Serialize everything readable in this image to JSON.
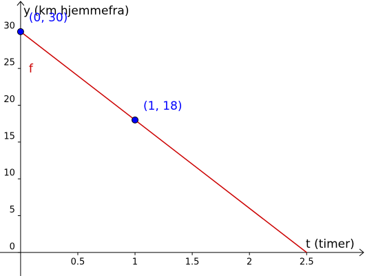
{
  "chart_data": {
    "type": "line",
    "x_label": "t (timer)",
    "y_label": "y (km hjemmefra)",
    "xlim": [
      -0.18,
      3.01
    ],
    "ylim": [
      -3.2,
      34.3
    ],
    "xticks": [
      0.5,
      1,
      1.5,
      2,
      2.5
    ],
    "yticks": [
      0,
      5,
      10,
      15,
      20,
      25,
      30
    ],
    "grid": false,
    "series": [
      {
        "name": "f",
        "color": "#cc0000",
        "x": [
          0,
          2.5
        ],
        "values": [
          30,
          0
        ]
      }
    ],
    "points": {
      "color": "#0000ff",
      "x": [
        0,
        1
      ],
      "values": [
        30,
        18
      ],
      "labels": [
        "(0, 30)",
        "(1, 18)"
      ]
    }
  }
}
